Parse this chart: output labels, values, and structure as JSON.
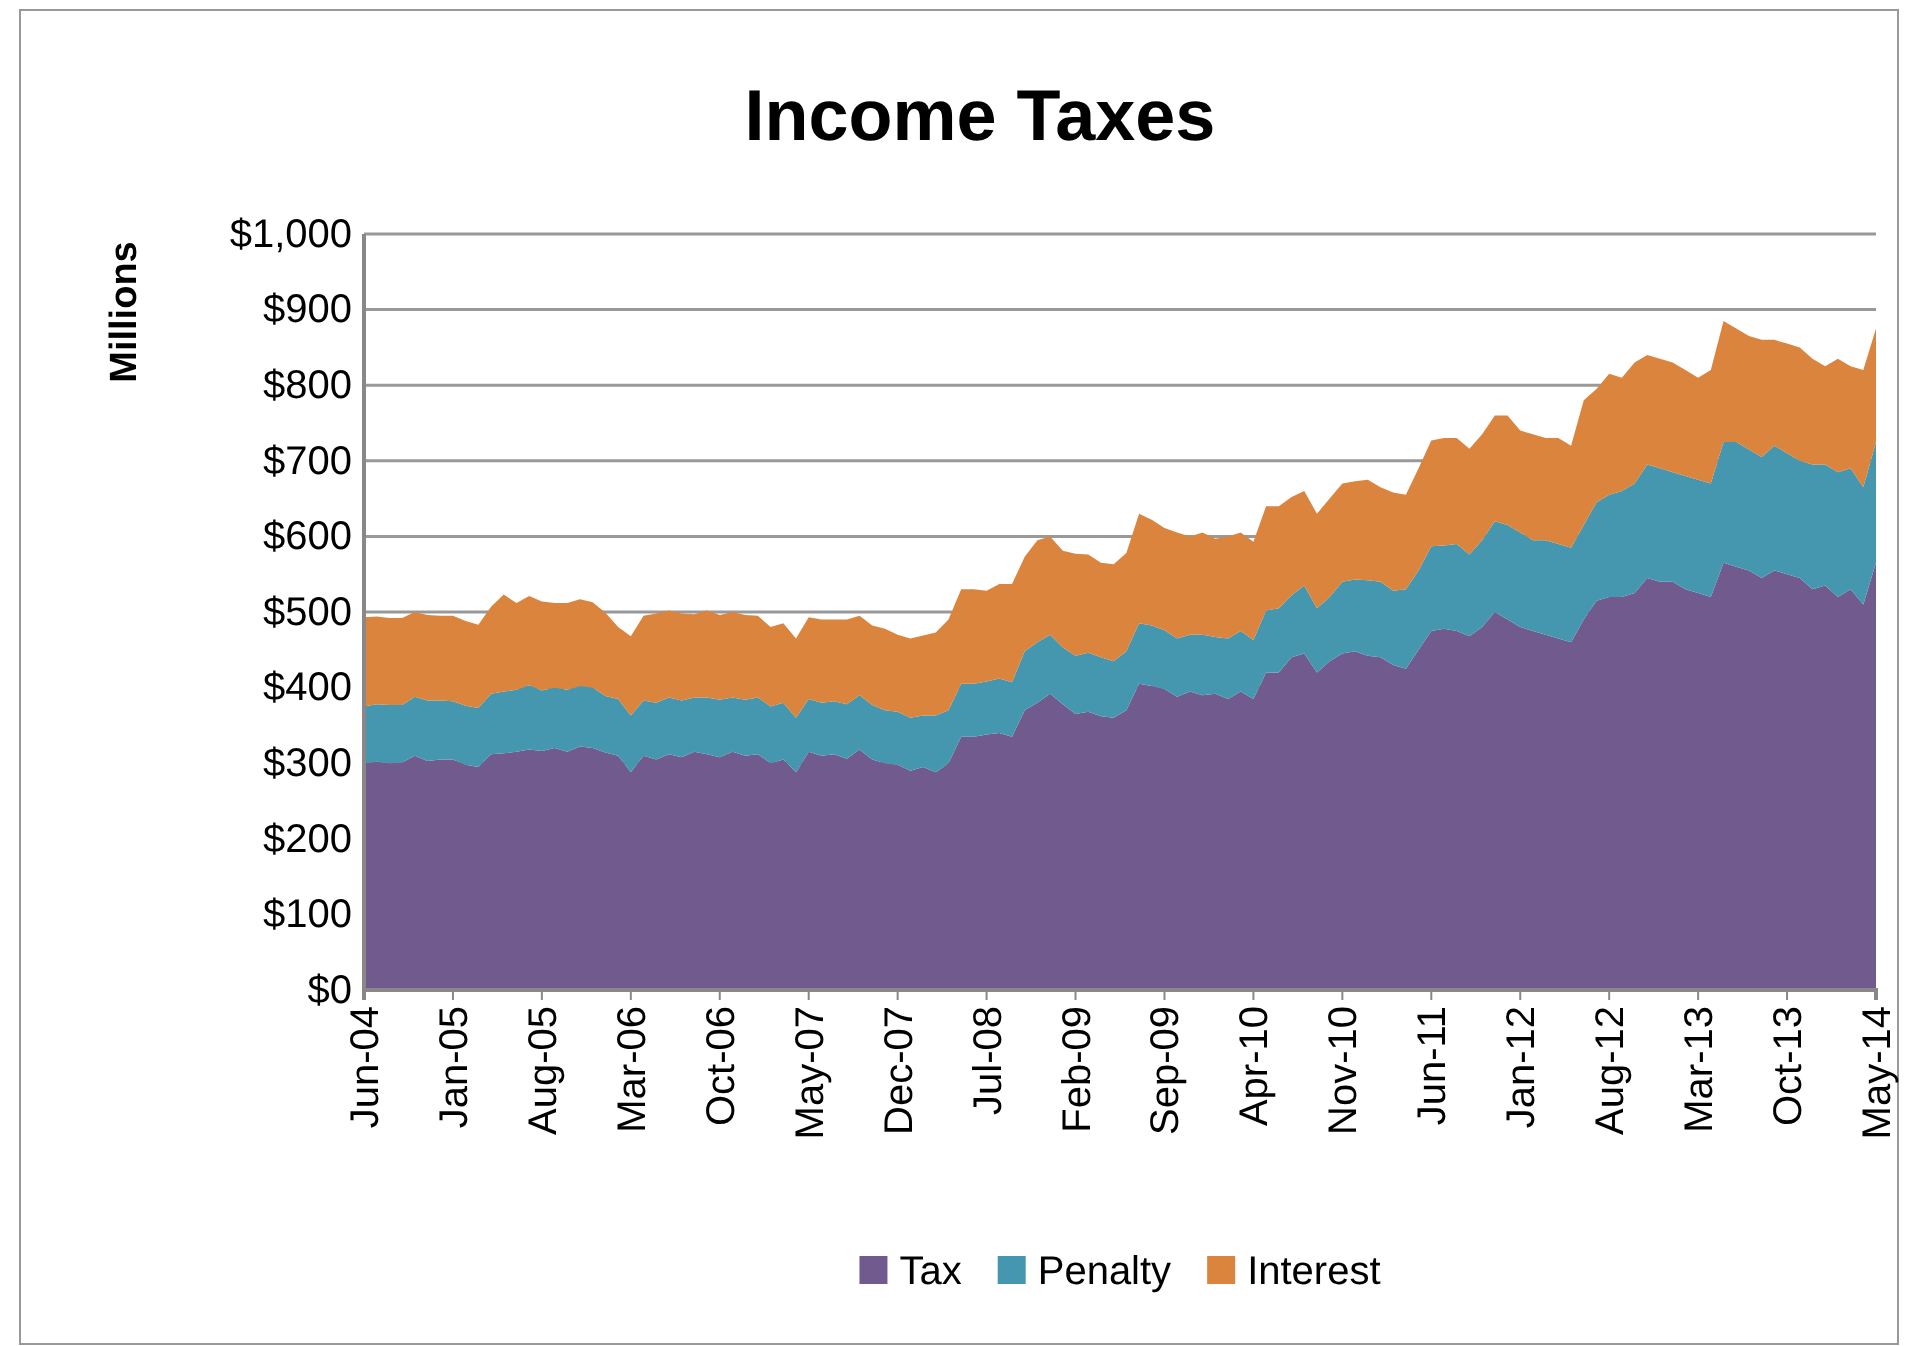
{
  "chart_data": {
    "type": "area",
    "title": "Income Taxes",
    "ylabel": "Millions",
    "stacked": true,
    "grid": "y",
    "legend": "bottom",
    "categories": [
      "Jun-04",
      null,
      null,
      null,
      null,
      null,
      null,
      "Jan-05",
      null,
      null,
      null,
      null,
      null,
      null,
      "Aug-05",
      null,
      null,
      null,
      null,
      null,
      null,
      "Mar-06",
      null,
      null,
      null,
      null,
      null,
      null,
      "Oct-06",
      null,
      null,
      null,
      null,
      null,
      null,
      "May-07",
      null,
      null,
      null,
      null,
      null,
      null,
      "Dec-07",
      null,
      null,
      null,
      null,
      null,
      null,
      "Jul-08",
      null,
      null,
      null,
      null,
      null,
      null,
      "Feb-09",
      null,
      null,
      null,
      null,
      null,
      null,
      "Sep-09",
      null,
      null,
      null,
      null,
      null,
      null,
      "Apr-10",
      null,
      null,
      null,
      null,
      null,
      null,
      "Nov-10",
      null,
      null,
      null,
      null,
      null,
      null,
      "Jun-11",
      null,
      null,
      null,
      null,
      null,
      null,
      "Jan-12",
      null,
      null,
      null,
      null,
      null,
      null,
      "Aug-12",
      null,
      null,
      null,
      null,
      null,
      null,
      "Mar-13",
      null,
      null,
      null,
      null,
      null,
      null,
      "Oct-13",
      null,
      null,
      null,
      null,
      null,
      null,
      "May-14"
    ],
    "ylim": [
      0,
      1000
    ],
    "yticks": [
      {
        "value": 0,
        "label": "$0"
      },
      {
        "value": 100,
        "label": "$100"
      },
      {
        "value": 200,
        "label": "$200"
      },
      {
        "value": 300,
        "label": "$300"
      },
      {
        "value": 400,
        "label": "$400"
      },
      {
        "value": 500,
        "label": "$500"
      },
      {
        "value": 600,
        "label": "$600"
      },
      {
        "value": 700,
        "label": "$700"
      },
      {
        "value": 800,
        "label": "$800"
      },
      {
        "value": 900,
        "label": "$900"
      },
      {
        "value": 1000,
        "label": "$1,000"
      }
    ],
    "series": [
      {
        "name": "Tax",
        "color": "#715a8e",
        "values": [
          300,
          302,
          300,
          301,
          310,
          303,
          305,
          305,
          298,
          295,
          312,
          313,
          315,
          318,
          316,
          320,
          315,
          322,
          320,
          314,
          310,
          288,
          310,
          305,
          312,
          308,
          315,
          312,
          308,
          315,
          310,
          312,
          300,
          305,
          288,
          315,
          310,
          312,
          306,
          318,
          305,
          300,
          298,
          290,
          295,
          288,
          300,
          335,
          335,
          338,
          340,
          335,
          370,
          380,
          392,
          378,
          365,
          368,
          362,
          360,
          370,
          405,
          402,
          398,
          388,
          395,
          390,
          392,
          385,
          395,
          385,
          420,
          420,
          440,
          445,
          420,
          435,
          445,
          448,
          442,
          440,
          430,
          425,
          450,
          475,
          478,
          475,
          468,
          480,
          500,
          490,
          480,
          475,
          470,
          465,
          460,
          490,
          515,
          520,
          520,
          525,
          545,
          540,
          540,
          530,
          525,
          520,
          565,
          560,
          555,
          545,
          555,
          550,
          545,
          530,
          535,
          520,
          530,
          510,
          565
        ]
      },
      {
        "name": "Penalty",
        "color": "#4497ae",
        "values": [
          75,
          76,
          77,
          76,
          78,
          80,
          78,
          77,
          78,
          78,
          80,
          82,
          82,
          85,
          80,
          80,
          82,
          80,
          80,
          75,
          75,
          75,
          73,
          75,
          75,
          75,
          72,
          75,
          76,
          72,
          74,
          75,
          75,
          75,
          72,
          70,
          70,
          70,
          72,
          72,
          72,
          70,
          70,
          70,
          68,
          75,
          70,
          70,
          70,
          70,
          72,
          72,
          78,
          80,
          78,
          75,
          77,
          78,
          78,
          75,
          78,
          80,
          80,
          78,
          77,
          75,
          80,
          75,
          80,
          80,
          78,
          82,
          85,
          82,
          90,
          85,
          85,
          95,
          95,
          100,
          100,
          98,
          105,
          105,
          112,
          110,
          115,
          108,
          115,
          120,
          125,
          125,
          120,
          125,
          125,
          125,
          125,
          130,
          135,
          140,
          145,
          150,
          150,
          145,
          150,
          150,
          150,
          160,
          165,
          160,
          160,
          165,
          160,
          155,
          165,
          160,
          165,
          160,
          155,
          160
        ]
      },
      {
        "name": "Interest",
        "color": "#db843d",
        "values": [
          118,
          116,
          115,
          115,
          112,
          113,
          112,
          113,
          112,
          110,
          115,
          128,
          115,
          118,
          118,
          112,
          115,
          115,
          113,
          110,
          95,
          105,
          112,
          118,
          115,
          115,
          110,
          115,
          112,
          113,
          112,
          108,
          105,
          105,
          105,
          108,
          110,
          108,
          112,
          105,
          105,
          108,
          102,
          105,
          106,
          110,
          120,
          125,
          125,
          120,
          125,
          130,
          125,
          135,
          130,
          128,
          135,
          130,
          125,
          128,
          130,
          145,
          140,
          135,
          140,
          130,
          135,
          130,
          135,
          130,
          130,
          138,
          135,
          130,
          125,
          125,
          130,
          130,
          130,
          133,
          125,
          130,
          125,
          135,
          140,
          142,
          140,
          140,
          140,
          140,
          145,
          135,
          140,
          135,
          140,
          135,
          165,
          150,
          160,
          150,
          160,
          145,
          145,
          145,
          140,
          135,
          150,
          160,
          150,
          150,
          155,
          140,
          145,
          150,
          140,
          130,
          150,
          135,
          155,
          150
        ]
      }
    ]
  }
}
